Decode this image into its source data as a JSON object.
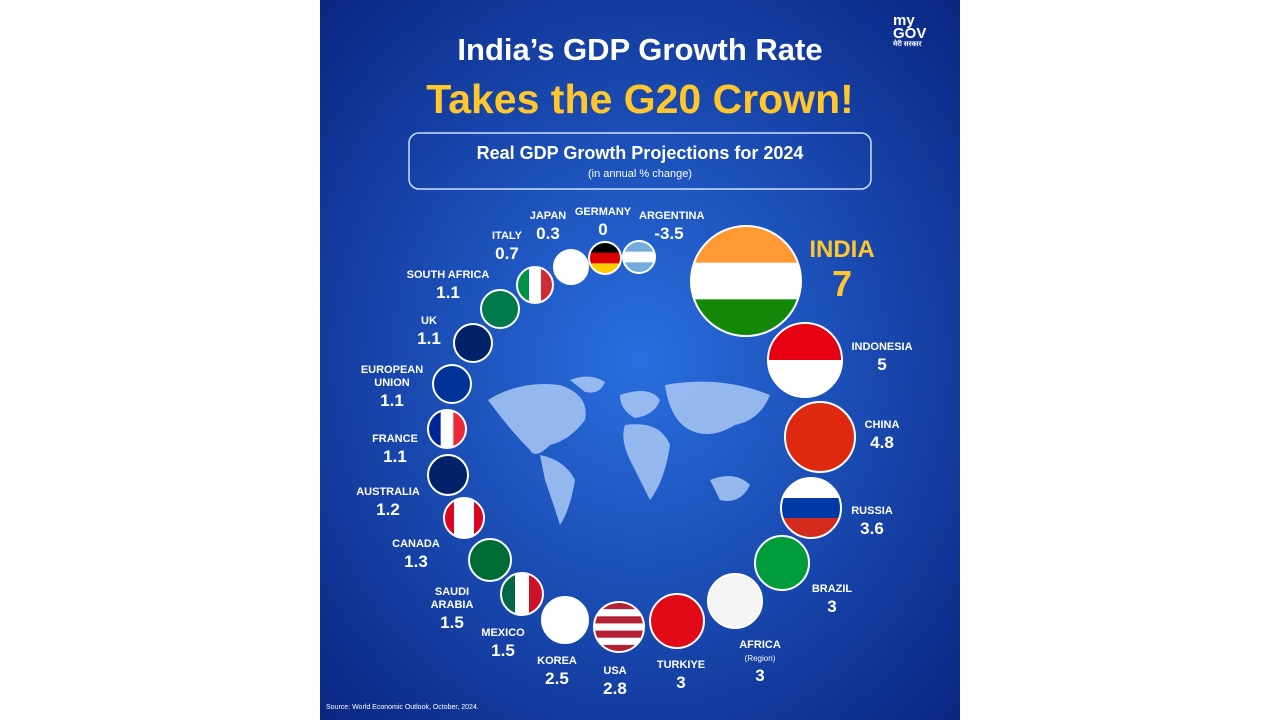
{
  "header": {
    "title": "India’s GDP Growth Rate",
    "headline": "Takes the G20 Crown!",
    "subtitle": "Real GDP Growth Projections for 2024",
    "unit_note": "(in annual % change)"
  },
  "logo": {
    "lines": [
      "my",
      "GOV",
      "मेरी सरकार"
    ]
  },
  "countries": [
    {
      "name": "INDIA",
      "value": 7
    },
    {
      "name": "INDONESIA",
      "value": 5
    },
    {
      "name": "CHINA",
      "value": 4.8
    },
    {
      "name": "RUSSIA",
      "value": 3.6
    },
    {
      "name": "BRAZIL",
      "value": 3
    },
    {
      "name": "AFRICA",
      "note": "(Region)",
      "value": 3
    },
    {
      "name": "TURKIYE",
      "value": 3
    },
    {
      "name": "USA",
      "value": 2.8
    },
    {
      "name": "KOREA",
      "value": 2.5
    },
    {
      "name": "MEXICO",
      "value": 1.5
    },
    {
      "name": "SAUDI ARABIA",
      "value": 1.5
    },
    {
      "name": "CANADA",
      "value": 1.3
    },
    {
      "name": "AUSTRALIA",
      "value": 1.2
    },
    {
      "name": "FRANCE",
      "value": 1.1
    },
    {
      "name": "EUROPEAN UNION",
      "value": 1.1
    },
    {
      "name": "UK",
      "value": 1.1
    },
    {
      "name": "SOUTH AFRICA",
      "value": 1.1
    },
    {
      "name": "ITALY",
      "value": 0.7
    },
    {
      "name": "JAPAN",
      "value": 0.3
    },
    {
      "name": "GERMANY",
      "value": 0
    },
    {
      "name": "ARGENTINA",
      "value": -3.5
    }
  ],
  "source": "Source: World Economic Outlook, October, 2024."
}
